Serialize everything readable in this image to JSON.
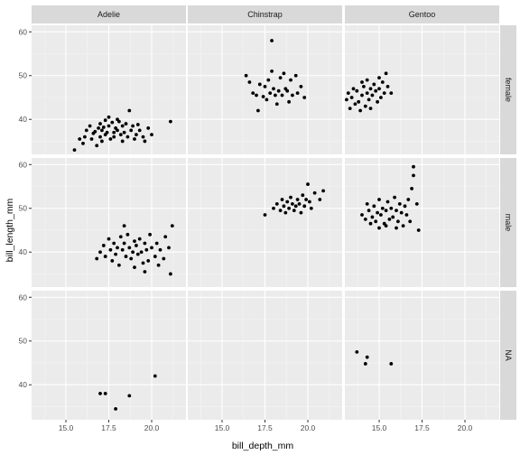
{
  "chart_data": {
    "type": "scatter",
    "facet_layout": "grid",
    "xlabel": "bill_depth_mm",
    "ylabel": "bill_length_mm",
    "xlim": [
      13,
      22
    ],
    "ylim": [
      32,
      61.5
    ],
    "x_ticks": [
      15.0,
      17.5,
      20.0
    ],
    "x_tick_labels": [
      "15.0",
      "17.5",
      "20.0"
    ],
    "y_ticks": [
      40,
      50,
      60
    ],
    "y_tick_labels": [
      "40",
      "50",
      "60"
    ],
    "grid": true,
    "legend": "none",
    "columns": [
      "Adelie",
      "Chinstrap",
      "Gentoo"
    ],
    "rows": [
      "female",
      "male",
      "NA"
    ],
    "colors": {
      "panel_background": "#ebebeb",
      "grid_major": "#ffffff",
      "grid_minor": "#f5f5f5",
      "strip_background": "#d9d9d9",
      "point": "#000000"
    },
    "panels": [
      {
        "column": "Adelie",
        "row": "female",
        "points": [
          [
            15.5,
            33.0
          ],
          [
            15.8,
            35.5
          ],
          [
            16.0,
            34.5
          ],
          [
            16.1,
            36.0
          ],
          [
            16.2,
            37.5
          ],
          [
            16.4,
            38.5
          ],
          [
            16.5,
            35.5
          ],
          [
            16.6,
            36.8
          ],
          [
            16.7,
            37.2
          ],
          [
            16.8,
            34.0
          ],
          [
            16.9,
            38.0
          ],
          [
            17.0,
            39.0
          ],
          [
            17.0,
            36.0
          ],
          [
            17.1,
            37.5
          ],
          [
            17.1,
            35.0
          ],
          [
            17.2,
            38.2
          ],
          [
            17.3,
            39.8
          ],
          [
            17.3,
            36.5
          ],
          [
            17.4,
            37.0
          ],
          [
            17.5,
            40.5
          ],
          [
            17.5,
            38.5
          ],
          [
            17.6,
            35.5
          ],
          [
            17.7,
            39.3
          ],
          [
            17.8,
            37.0
          ],
          [
            17.8,
            36.0
          ],
          [
            17.9,
            38.0
          ],
          [
            18.0,
            40.0
          ],
          [
            18.0,
            37.5
          ],
          [
            18.1,
            39.5
          ],
          [
            18.2,
            36.5
          ],
          [
            18.3,
            38.5
          ],
          [
            18.3,
            35.0
          ],
          [
            18.4,
            37.0
          ],
          [
            18.5,
            39.0
          ],
          [
            18.6,
            36.0
          ],
          [
            18.7,
            42.0
          ],
          [
            18.8,
            37.5
          ],
          [
            18.9,
            38.5
          ],
          [
            19.0,
            35.5
          ],
          [
            19.1,
            36.5
          ],
          [
            19.2,
            38.8
          ],
          [
            19.3,
            37.5
          ],
          [
            19.5,
            36.0
          ],
          [
            19.6,
            35.0
          ],
          [
            19.8,
            38.0
          ],
          [
            20.0,
            36.5
          ],
          [
            21.1,
            39.5
          ]
        ]
      },
      {
        "column": "Chinstrap",
        "row": "female",
        "points": [
          [
            16.4,
            50.0
          ],
          [
            16.6,
            48.5
          ],
          [
            16.8,
            46.0
          ],
          [
            17.0,
            45.5
          ],
          [
            17.1,
            42.0
          ],
          [
            17.2,
            48.0
          ],
          [
            17.4,
            45.2
          ],
          [
            17.5,
            47.5
          ],
          [
            17.6,
            44.5
          ],
          [
            17.7,
            49.0
          ],
          [
            17.8,
            46.0
          ],
          [
            17.9,
            58.0
          ],
          [
            17.9,
            51.0
          ],
          [
            18.0,
            47.0
          ],
          [
            18.1,
            45.5
          ],
          [
            18.2,
            43.5
          ],
          [
            18.3,
            46.5
          ],
          [
            18.4,
            49.5
          ],
          [
            18.5,
            45.5
          ],
          [
            18.6,
            50.5
          ],
          [
            18.7,
            47.0
          ],
          [
            18.8,
            46.5
          ],
          [
            18.9,
            44.0
          ],
          [
            19.0,
            49.0
          ],
          [
            19.1,
            45.5
          ],
          [
            19.3,
            50.0
          ],
          [
            19.4,
            46.0
          ],
          [
            19.6,
            47.5
          ],
          [
            19.8,
            45.0
          ]
        ]
      },
      {
        "column": "Gentoo",
        "row": "female",
        "points": [
          [
            13.1,
            44.5
          ],
          [
            13.2,
            46.0
          ],
          [
            13.3,
            42.5
          ],
          [
            13.4,
            45.0
          ],
          [
            13.5,
            47.0
          ],
          [
            13.6,
            43.5
          ],
          [
            13.7,
            46.5
          ],
          [
            13.8,
            44.0
          ],
          [
            13.9,
            42.0
          ],
          [
            14.0,
            48.5
          ],
          [
            14.0,
            45.5
          ],
          [
            14.1,
            47.5
          ],
          [
            14.2,
            43.0
          ],
          [
            14.3,
            46.0
          ],
          [
            14.3,
            49.0
          ],
          [
            14.4,
            44.5
          ],
          [
            14.5,
            47.0
          ],
          [
            14.5,
            42.5
          ],
          [
            14.6,
            45.5
          ],
          [
            14.7,
            48.0
          ],
          [
            14.8,
            46.5
          ],
          [
            14.9,
            44.0
          ],
          [
            15.0,
            49.5
          ],
          [
            15.0,
            47.0
          ],
          [
            15.1,
            45.0
          ],
          [
            15.2,
            48.5
          ],
          [
            15.3,
            46.0
          ],
          [
            15.4,
            50.5
          ],
          [
            15.5,
            47.5
          ],
          [
            15.7,
            46.0
          ]
        ]
      },
      {
        "column": "Adelie",
        "row": "male",
        "points": [
          [
            16.8,
            38.5
          ],
          [
            17.0,
            40.0
          ],
          [
            17.2,
            41.5
          ],
          [
            17.3,
            39.0
          ],
          [
            17.5,
            43.0
          ],
          [
            17.6,
            40.5
          ],
          [
            17.7,
            38.0
          ],
          [
            17.8,
            42.0
          ],
          [
            17.9,
            39.5
          ],
          [
            18.0,
            41.0
          ],
          [
            18.1,
            37.0
          ],
          [
            18.2,
            43.5
          ],
          [
            18.3,
            40.5
          ],
          [
            18.4,
            42.0
          ],
          [
            18.5,
            39.0
          ],
          [
            18.6,
            44.0
          ],
          [
            18.7,
            41.0
          ],
          [
            18.8,
            38.5
          ],
          [
            18.9,
            40.0
          ],
          [
            19.0,
            42.5
          ],
          [
            19.0,
            36.5
          ],
          [
            19.1,
            41.5
          ],
          [
            19.2,
            39.5
          ],
          [
            19.3,
            43.0
          ],
          [
            19.4,
            40.0
          ],
          [
            19.5,
            37.5
          ],
          [
            19.6,
            42.0
          ],
          [
            19.7,
            40.5
          ],
          [
            19.8,
            38.0
          ],
          [
            19.9,
            44.0
          ],
          [
            20.0,
            41.0
          ],
          [
            20.2,
            39.0
          ],
          [
            20.3,
            42.0
          ],
          [
            20.5,
            40.5
          ],
          [
            20.7,
            38.5
          ],
          [
            20.8,
            43.5
          ],
          [
            21.0,
            41.0
          ],
          [
            21.1,
            35.0
          ],
          [
            21.2,
            46.0
          ],
          [
            20.4,
            37.0
          ],
          [
            19.6,
            35.5
          ],
          [
            18.4,
            46.0
          ]
        ]
      },
      {
        "column": "Chinstrap",
        "row": "male",
        "points": [
          [
            17.5,
            48.5
          ],
          [
            18.0,
            50.0
          ],
          [
            18.2,
            51.0
          ],
          [
            18.4,
            49.5
          ],
          [
            18.5,
            52.0
          ],
          [
            18.6,
            50.5
          ],
          [
            18.7,
            49.0
          ],
          [
            18.8,
            51.5
          ],
          [
            18.9,
            50.0
          ],
          [
            19.0,
            52.5
          ],
          [
            19.1,
            51.0
          ],
          [
            19.2,
            49.5
          ],
          [
            19.3,
            50.5
          ],
          [
            19.4,
            52.0
          ],
          [
            19.5,
            51.0
          ],
          [
            19.6,
            49.0
          ],
          [
            19.7,
            53.0
          ],
          [
            19.8,
            50.5
          ],
          [
            19.9,
            52.0
          ],
          [
            20.0,
            55.5
          ],
          [
            20.1,
            51.5
          ],
          [
            20.2,
            50.0
          ],
          [
            20.4,
            53.5
          ],
          [
            20.7,
            52.0
          ],
          [
            20.9,
            54.0
          ]
        ]
      },
      {
        "column": "Gentoo",
        "row": "male",
        "points": [
          [
            14.0,
            48.5
          ],
          [
            14.2,
            47.5
          ],
          [
            14.3,
            51.0
          ],
          [
            14.4,
            49.5
          ],
          [
            14.5,
            46.5
          ],
          [
            14.6,
            48.0
          ],
          [
            14.7,
            50.5
          ],
          [
            14.8,
            47.0
          ],
          [
            14.9,
            49.0
          ],
          [
            15.0,
            52.0
          ],
          [
            15.0,
            45.5
          ],
          [
            15.1,
            48.5
          ],
          [
            15.2,
            50.0
          ],
          [
            15.3,
            46.5
          ],
          [
            15.4,
            49.5
          ],
          [
            15.5,
            51.5
          ],
          [
            15.6,
            47.5
          ],
          [
            15.7,
            50.0
          ],
          [
            15.8,
            48.0
          ],
          [
            15.9,
            52.5
          ],
          [
            16.0,
            49.5
          ],
          [
            16.1,
            47.0
          ],
          [
            16.2,
            51.0
          ],
          [
            16.3,
            49.0
          ],
          [
            16.4,
            46.0
          ],
          [
            16.5,
            50.5
          ],
          [
            16.6,
            48.5
          ],
          [
            16.7,
            52.0
          ],
          [
            16.8,
            47.0
          ],
          [
            17.0,
            59.5
          ],
          [
            17.0,
            57.5
          ],
          [
            17.2,
            51.0
          ],
          [
            17.3,
            45.0
          ],
          [
            16.9,
            54.5
          ],
          [
            16.0,
            45.5
          ],
          [
            15.4,
            46.0
          ]
        ]
      },
      {
        "column": "Adelie",
        "row": "NA",
        "points": [
          [
            17.0,
            38.0
          ],
          [
            17.3,
            38.0
          ],
          [
            17.9,
            34.5
          ],
          [
            18.7,
            37.5
          ],
          [
            20.2,
            42.0
          ]
        ]
      },
      {
        "column": "Chinstrap",
        "row": "NA",
        "points": []
      },
      {
        "column": "Gentoo",
        "row": "NA",
        "points": [
          [
            13.7,
            47.5
          ],
          [
            14.2,
            44.8
          ],
          [
            14.3,
            46.3
          ],
          [
            15.7,
            44.8
          ]
        ]
      }
    ]
  }
}
